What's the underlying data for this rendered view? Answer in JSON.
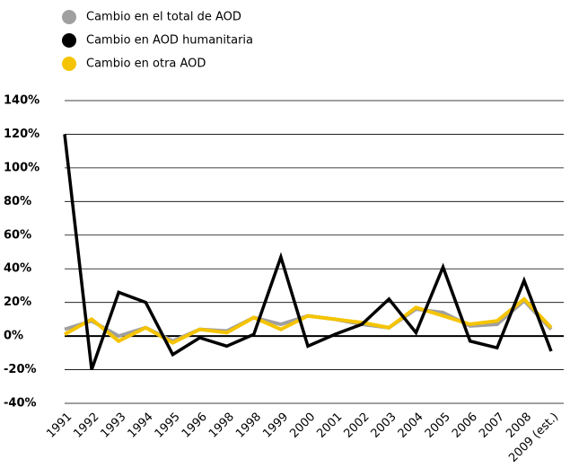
{
  "chart_data": {
    "type": "line",
    "categories": [
      "1991",
      "1992",
      "1993",
      "1994",
      "1995",
      "1996",
      "1998",
      "1998",
      "1999",
      "2000",
      "2001",
      "2002",
      "2003",
      "2004",
      "2005",
      "2006",
      "2007",
      "2008",
      "2009 (est.)"
    ],
    "series": [
      {
        "name": "Cambio en el total de AOD",
        "color": "#a0a0a0",
        "values": [
          4,
          9,
          0,
          5,
          -3,
          4,
          3,
          11,
          7,
          12,
          10,
          7,
          5,
          16,
          14,
          6,
          7,
          21,
          4
        ]
      },
      {
        "name": "Cambio en AOD humanitaria",
        "color": "#000000",
        "values": [
          120,
          -20,
          26,
          20,
          -11,
          -1,
          -6,
          1,
          47,
          -6,
          1,
          7,
          22,
          2,
          41,
          -3,
          -7,
          33,
          -9
        ]
      },
      {
        "name": "Cambio en otra AOD",
        "color": "#f5c400",
        "values": [
          1,
          10,
          -3,
          5,
          -4,
          4,
          2,
          11,
          4,
          12,
          10,
          8,
          5,
          17,
          12,
          7,
          9,
          22,
          5
        ]
      }
    ],
    "ylim": [
      -40,
      140
    ],
    "yticks": [
      {
        "value": -40,
        "label": "-40%"
      },
      {
        "value": -20,
        "label": "-20%"
      },
      {
        "value": 0,
        "label": "0%"
      },
      {
        "value": 20,
        "label": "20%"
      },
      {
        "value": 40,
        "label": "40%"
      },
      {
        "value": 60,
        "label": "60%"
      },
      {
        "value": 80,
        "label": "80%"
      },
      {
        "value": 100,
        "label": "100%"
      },
      {
        "value": 120,
        "label": "120%"
      },
      {
        "value": 140,
        "label": "140%"
      }
    ],
    "grid": true,
    "legend": "top-left"
  }
}
